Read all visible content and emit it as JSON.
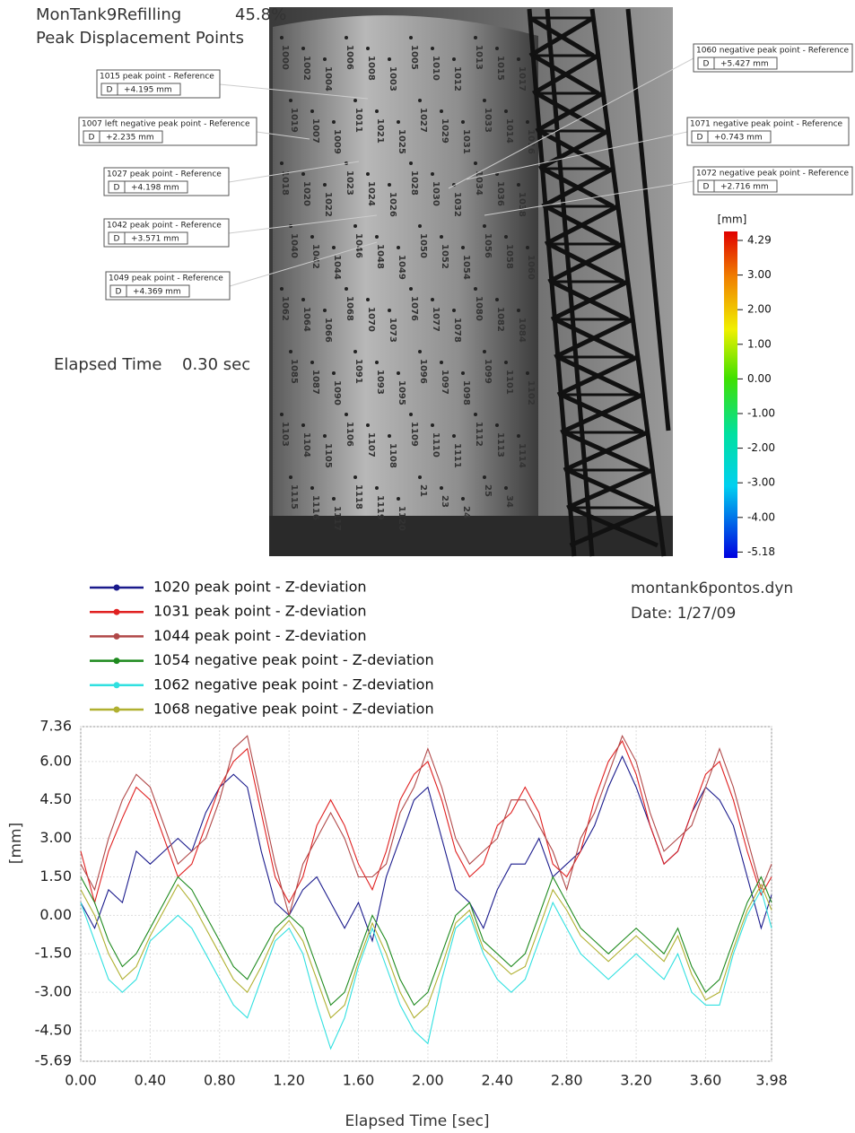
{
  "header": {
    "title": "MonTank9Refilling",
    "percent": "45.8%",
    "subtitle": "Peak Displacement Points",
    "time_label": "Elapsed Time",
    "time_value": "0.30 sec"
  },
  "info": {
    "file": "montank6pontos.dyn",
    "date": "Date: 1/27/09"
  },
  "callouts": [
    {
      "title": "1015 peak point - Reference",
      "label": "D",
      "value": "+4.195 mm"
    },
    {
      "title": "1007 left negative peak point - Reference",
      "label": "D",
      "value": "+2.235 mm"
    },
    {
      "title": "1027 peak point - Reference",
      "label": "D",
      "value": "+4.198 mm"
    },
    {
      "title": "1042 peak point - Reference",
      "label": "D",
      "value": "+3.571 mm"
    },
    {
      "title": "1049 peak point - Reference",
      "label": "D",
      "value": "+4.369 mm"
    },
    {
      "title": "1060 negative peak point - Reference",
      "label": "D",
      "value": "+5.427 mm"
    },
    {
      "title": "1071 negative peak point - Reference",
      "label": "D",
      "value": "+0.743 mm"
    },
    {
      "title": "1072 negative peak point - Reference",
      "label": "D",
      "value": "+2.716 mm"
    }
  ],
  "colorbar": {
    "unit": "[mm]",
    "labels": [
      "4.29",
      "3.00",
      "2.00",
      "1.00",
      "0.00",
      "-1.00",
      "-2.00",
      "-3.00",
      "-4.00",
      "-5.18"
    ]
  },
  "point_labels": [
    "1000",
    "1002",
    "1004",
    "1006",
    "1008",
    "1003",
    "1005",
    "1010",
    "1012",
    "1013",
    "1015",
    "1017",
    "1019",
    "1007",
    "1009",
    "1011",
    "1021",
    "1025",
    "1027",
    "1029",
    "1031",
    "1033",
    "1014",
    "1016",
    "1018",
    "1020",
    "1022",
    "1023",
    "1024",
    "1026",
    "1028",
    "1030",
    "1032",
    "1034",
    "1036",
    "1038",
    "1040",
    "1042",
    "1044",
    "1046",
    "1048",
    "1049",
    "1050",
    "1052",
    "1054",
    "1056",
    "1058",
    "1060",
    "1062",
    "1064",
    "1066",
    "1068",
    "1070",
    "1073",
    "1076",
    "1077",
    "1078",
    "1080",
    "1082",
    "1084",
    "1085",
    "1087",
    "1090",
    "1091",
    "1093",
    "1095",
    "1096",
    "1097",
    "1098",
    "1099",
    "1101",
    "1102",
    "1103",
    "1104",
    "1105",
    "1106",
    "1107",
    "1108",
    "1109",
    "1110",
    "1111",
    "1112",
    "1113",
    "1114",
    "1115",
    "1116",
    "1117",
    "1118",
    "1119",
    "1120",
    "21",
    "23",
    "24",
    "25",
    "34"
  ],
  "chart_data": {
    "type": "line",
    "xlabel": "Elapsed Time [sec]",
    "ylabel": "[mm]",
    "grid": true,
    "xlim": [
      0,
      3.98
    ],
    "ylim": [
      -5.69,
      7.36
    ],
    "xticks": [
      {
        "value": 0,
        "label": "0.00"
      },
      {
        "value": 0.4,
        "label": "0.40"
      },
      {
        "value": 0.8,
        "label": "0.80"
      },
      {
        "value": 1.2,
        "label": "1.20"
      },
      {
        "value": 1.6,
        "label": "1.60"
      },
      {
        "value": 2.0,
        "label": "2.00"
      },
      {
        "value": 2.4,
        "label": "2.40"
      },
      {
        "value": 2.8,
        "label": "2.80"
      },
      {
        "value": 3.2,
        "label": "3.20"
      },
      {
        "value": 3.6,
        "label": "3.60"
      },
      {
        "value": 3.98,
        "label": "3.98"
      }
    ],
    "yticks": [
      {
        "value": 7.36,
        "label": "7.36"
      },
      {
        "value": 6,
        "label": "6.00"
      },
      {
        "value": 4.5,
        "label": "4.50"
      },
      {
        "value": 3,
        "label": "3.00"
      },
      {
        "value": 1.5,
        "label": "1.50"
      },
      {
        "value": 0,
        "label": "0.00"
      },
      {
        "value": -1.5,
        "label": "-1.50"
      },
      {
        "value": -3,
        "label": "-3.00"
      },
      {
        "value": -4.5,
        "label": "-4.50"
      },
      {
        "value": -5.69,
        "label": "-5.69"
      }
    ],
    "x": [
      0,
      0.08,
      0.16,
      0.24,
      0.32,
      0.4,
      0.48,
      0.56,
      0.64,
      0.72,
      0.8,
      0.88,
      0.96,
      1.04,
      1.12,
      1.2,
      1.28,
      1.36,
      1.44,
      1.52,
      1.6,
      1.68,
      1.76,
      1.84,
      1.92,
      2.0,
      2.08,
      2.16,
      2.24,
      2.32,
      2.4,
      2.48,
      2.56,
      2.64,
      2.72,
      2.8,
      2.88,
      2.96,
      3.04,
      3.12,
      3.2,
      3.28,
      3.36,
      3.44,
      3.52,
      3.6,
      3.68,
      3.76,
      3.84,
      3.92,
      3.98
    ],
    "series": [
      {
        "name": "1020 peak point - Z-deviation",
        "color": "#1a1a8c",
        "values": [
          0.5,
          -0.5,
          1.0,
          0.5,
          2.5,
          2.0,
          2.5,
          3.0,
          2.5,
          4.0,
          5.0,
          5.5,
          5.0,
          2.5,
          0.5,
          0.0,
          1.0,
          1.5,
          0.5,
          -0.5,
          0.5,
          -1.0,
          1.5,
          3.0,
          4.5,
          5.0,
          3.0,
          1.0,
          0.5,
          -0.5,
          1.0,
          2.0,
          2.0,
          3.0,
          1.5,
          2.0,
          2.5,
          3.5,
          5.0,
          6.2,
          5.0,
          3.5,
          2.0,
          2.5,
          4.0,
          5.0,
          4.5,
          3.5,
          1.5,
          -0.5,
          0.8
        ]
      },
      {
        "name": "1031 peak point - Z-deviation",
        "color": "#e02020",
        "values": [
          2.5,
          0.5,
          2.5,
          3.8,
          5.0,
          4.5,
          3.0,
          1.5,
          2.0,
          3.5,
          5.0,
          6.0,
          6.5,
          4.0,
          1.5,
          0.5,
          1.5,
          3.5,
          4.5,
          3.5,
          2.0,
          1.0,
          2.5,
          4.5,
          5.5,
          6.0,
          4.5,
          2.5,
          1.5,
          2.0,
          3.5,
          4.0,
          5.0,
          4.0,
          2.0,
          1.5,
          2.5,
          4.5,
          6.0,
          6.8,
          5.5,
          3.5,
          2.0,
          2.5,
          4.0,
          5.5,
          6.0,
          4.5,
          2.5,
          0.8,
          1.5
        ]
      },
      {
        "name": "1044 peak point - Z-deviation",
        "color": "#b04848",
        "values": [
          2.0,
          1.0,
          3.0,
          4.5,
          5.5,
          5.0,
          3.5,
          2.0,
          2.5,
          3.0,
          4.5,
          6.5,
          7.0,
          4.5,
          2.0,
          0.0,
          2.0,
          3.0,
          4.0,
          3.0,
          1.5,
          1.5,
          2.0,
          4.0,
          5.0,
          6.5,
          5.0,
          3.0,
          2.0,
          2.5,
          3.0,
          4.5,
          4.5,
          3.5,
          2.5,
          1.0,
          3.0,
          4.0,
          5.5,
          7.0,
          6.0,
          4.0,
          2.5,
          3.0,
          3.5,
          5.0,
          6.5,
          5.0,
          3.0,
          1.0,
          2.0
        ]
      },
      {
        "name": "1054 negative peak point - Z-deviation",
        "color": "#1e8a1e",
        "values": [
          1.5,
          0.5,
          -1.0,
          -2.0,
          -1.5,
          -0.5,
          0.5,
          1.5,
          1.0,
          0.0,
          -1.0,
          -2.0,
          -2.5,
          -1.5,
          -0.5,
          0.0,
          -0.5,
          -2.0,
          -3.5,
          -3.0,
          -1.5,
          0.0,
          -1.0,
          -2.5,
          -3.5,
          -3.0,
          -1.5,
          0.0,
          0.5,
          -1.0,
          -1.5,
          -2.0,
          -1.5,
          0.0,
          1.5,
          0.5,
          -0.5,
          -1.0,
          -1.5,
          -1.0,
          -0.5,
          -1.0,
          -1.5,
          -0.5,
          -2.0,
          -3.0,
          -2.5,
          -1.0,
          0.5,
          1.5,
          0.5
        ]
      },
      {
        "name": "1062 negative peak point - Z-deviation",
        "color": "#30e0e0",
        "values": [
          0.5,
          -1.0,
          -2.5,
          -3.0,
          -2.5,
          -1.0,
          -0.5,
          0.0,
          -0.5,
          -1.5,
          -2.5,
          -3.5,
          -4.0,
          -2.5,
          -1.0,
          -0.5,
          -1.5,
          -3.5,
          -5.2,
          -4.0,
          -2.0,
          -0.5,
          -2.0,
          -3.5,
          -4.5,
          -5.0,
          -2.5,
          -0.5,
          0.0,
          -1.5,
          -2.5,
          -3.0,
          -2.5,
          -1.0,
          0.5,
          -0.5,
          -1.5,
          -2.0,
          -2.5,
          -2.0,
          -1.5,
          -2.0,
          -2.5,
          -1.5,
          -3.0,
          -3.5,
          -3.5,
          -1.5,
          0.0,
          1.0,
          -0.5
        ]
      },
      {
        "name": "1068 negative peak point - Z-deviation",
        "color": "#b0b030",
        "values": [
          1.0,
          0.0,
          -1.5,
          -2.5,
          -2.0,
          -0.8,
          0.2,
          1.2,
          0.5,
          -0.5,
          -1.5,
          -2.5,
          -3.0,
          -2.0,
          -0.8,
          -0.2,
          -1.0,
          -2.5,
          -4.0,
          -3.5,
          -1.8,
          -0.3,
          -1.5,
          -3.0,
          -4.0,
          -3.5,
          -2.0,
          -0.3,
          0.2,
          -1.3,
          -1.8,
          -2.3,
          -2.0,
          -0.5,
          1.0,
          0.2,
          -0.8,
          -1.3,
          -1.8,
          -1.3,
          -0.8,
          -1.3,
          -1.8,
          -0.8,
          -2.3,
          -3.3,
          -3.0,
          -1.3,
          0.2,
          1.2,
          0.2
        ]
      }
    ]
  }
}
